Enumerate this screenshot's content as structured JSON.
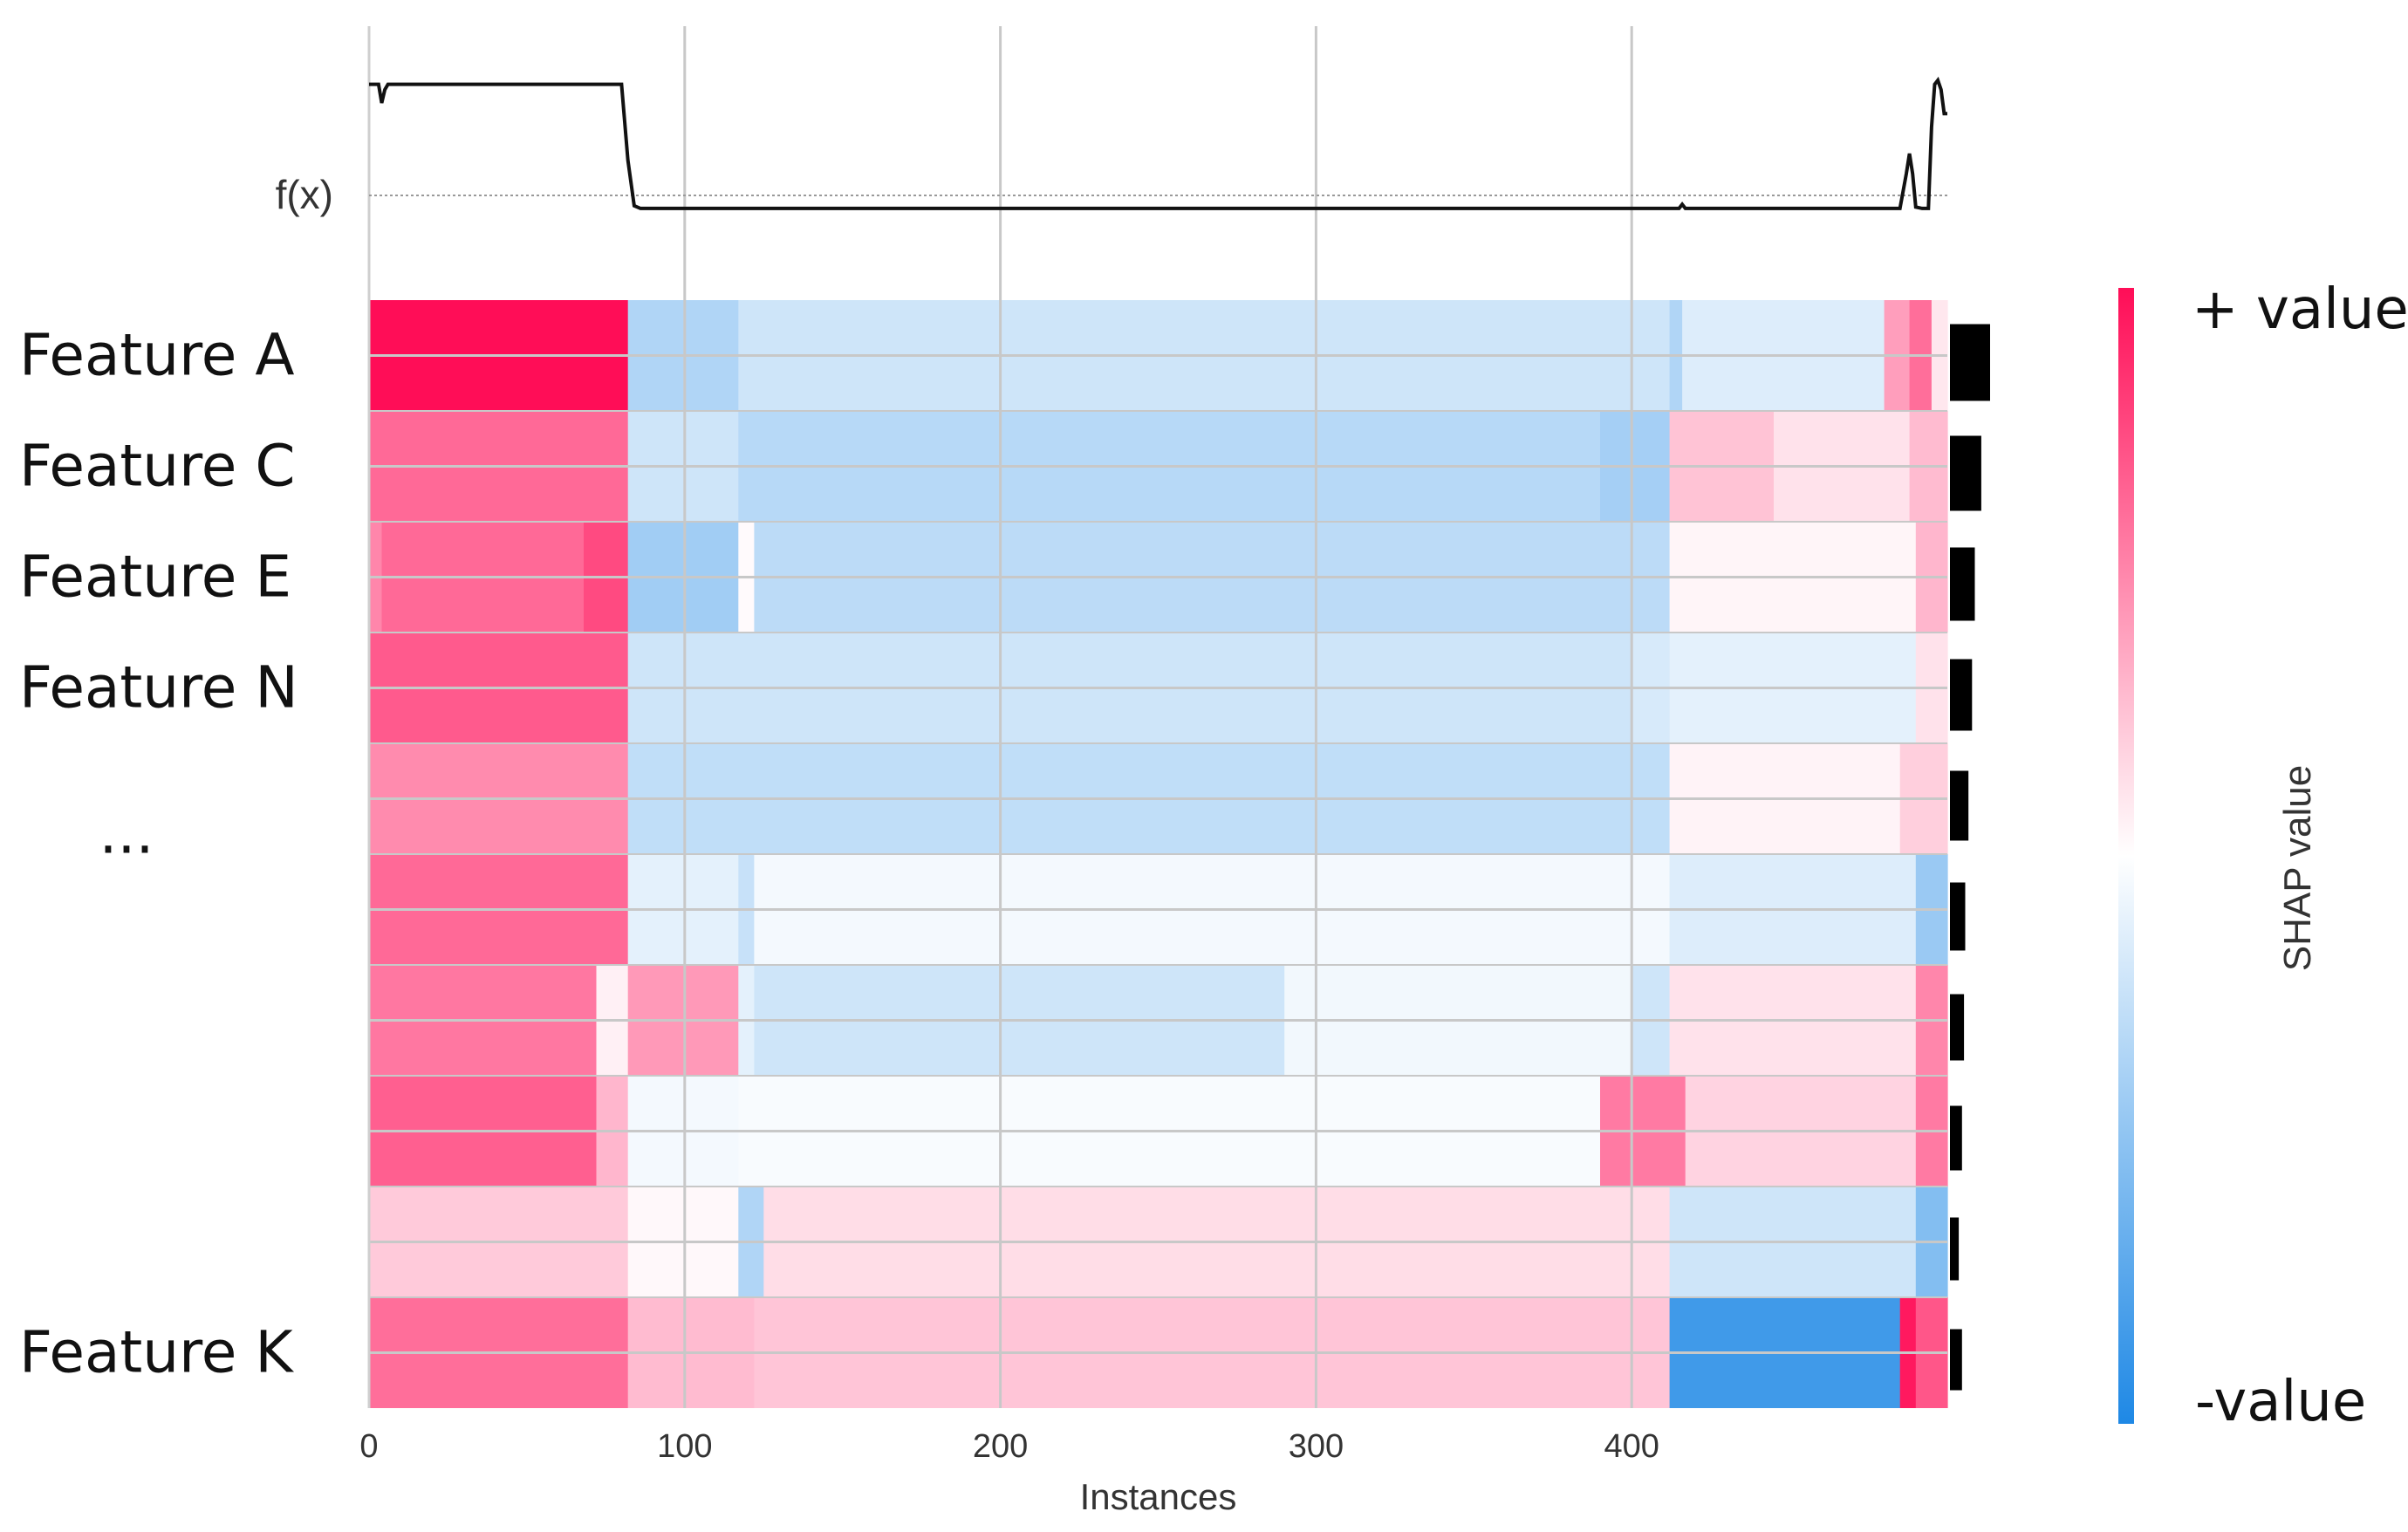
{
  "chart_data": {
    "type": "heatmap",
    "title": "",
    "xlabel": "Instances",
    "ylabel": "",
    "xlim": [
      0,
      500
    ],
    "x_ticks": [
      0,
      100,
      200,
      300,
      400
    ],
    "x_tick_labels": [
      "0",
      "100",
      "200",
      "300",
      "400"
    ],
    "fx_label": "f(x)",
    "row_labels": [
      "Feature A",
      "Feature C",
      "Feature E",
      "Feature N",
      "...",
      "",
      "",
      "",
      "",
      "Feature K"
    ],
    "heatmap_rows": [
      {
        "segments": [
          [
            0,
            82,
            1.0
          ],
          [
            82,
            117,
            -0.35
          ],
          [
            117,
            412,
            -0.22
          ],
          [
            412,
            416,
            -0.35
          ],
          [
            416,
            480,
            -0.15
          ],
          [
            480,
            488,
            0.4
          ],
          [
            488,
            495,
            0.6
          ],
          [
            495,
            500,
            0.1
          ]
        ]
      },
      {
        "segments": [
          [
            0,
            82,
            0.62
          ],
          [
            82,
            117,
            -0.22
          ],
          [
            117,
            390,
            -0.32
          ],
          [
            390,
            412,
            -0.4
          ],
          [
            412,
            445,
            0.25
          ],
          [
            445,
            488,
            0.12
          ],
          [
            488,
            500,
            0.28
          ]
        ]
      },
      {
        "segments": [
          [
            0,
            4,
            0.5
          ],
          [
            4,
            68,
            0.62
          ],
          [
            68,
            82,
            0.75
          ],
          [
            82,
            117,
            -0.42
          ],
          [
            117,
            122,
            0.02
          ],
          [
            122,
            412,
            -0.3
          ],
          [
            412,
            490,
            0.04
          ],
          [
            490,
            500,
            0.3
          ]
        ]
      },
      {
        "segments": [
          [
            0,
            82,
            0.68
          ],
          [
            82,
            400,
            -0.22
          ],
          [
            400,
            412,
            -0.18
          ],
          [
            412,
            490,
            -0.12
          ],
          [
            490,
            500,
            0.12
          ]
        ]
      },
      {
        "segments": [
          [
            0,
            82,
            0.48
          ],
          [
            82,
            412,
            -0.28
          ],
          [
            412,
            485,
            0.05
          ],
          [
            485,
            500,
            0.2
          ]
        ]
      },
      {
        "segments": [
          [
            0,
            82,
            0.62
          ],
          [
            82,
            117,
            -0.12
          ],
          [
            117,
            122,
            -0.25
          ],
          [
            122,
            412,
            -0.05
          ],
          [
            412,
            490,
            -0.15
          ],
          [
            490,
            500,
            -0.45
          ]
        ]
      },
      {
        "segments": [
          [
            0,
            72,
            0.56
          ],
          [
            72,
            82,
            0.06
          ],
          [
            82,
            117,
            0.42
          ],
          [
            117,
            122,
            -0.12
          ],
          [
            122,
            290,
            -0.22
          ],
          [
            290,
            400,
            -0.06
          ],
          [
            400,
            412,
            -0.22
          ],
          [
            412,
            490,
            0.12
          ],
          [
            490,
            500,
            0.5
          ]
        ]
      },
      {
        "segments": [
          [
            0,
            72,
            0.66
          ],
          [
            72,
            82,
            0.3
          ],
          [
            82,
            117,
            -0.05
          ],
          [
            117,
            390,
            -0.03
          ],
          [
            390,
            417,
            0.55
          ],
          [
            417,
            490,
            0.18
          ],
          [
            490,
            500,
            0.55
          ]
        ]
      },
      {
        "segments": [
          [
            0,
            82,
            0.22
          ],
          [
            82,
            117,
            0.03
          ],
          [
            117,
            125,
            -0.35
          ],
          [
            125,
            412,
            0.14
          ],
          [
            412,
            490,
            -0.22
          ],
          [
            490,
            500,
            -0.55
          ]
        ]
      },
      {
        "segments": [
          [
            0,
            82,
            0.6
          ],
          [
            82,
            122,
            0.28
          ],
          [
            122,
            412,
            0.24
          ],
          [
            412,
            485,
            -0.85
          ],
          [
            485,
            490,
            0.95
          ],
          [
            490,
            500,
            0.7
          ]
        ]
      }
    ],
    "importance_bars": [
      1.0,
      0.78,
      0.62,
      0.55,
      0.46,
      0.38,
      0.35,
      0.3,
      0.22,
      0.3
    ],
    "fx_series": {
      "x": [
        0,
        3,
        4,
        5,
        6,
        8,
        80,
        82,
        84,
        86,
        100,
        200,
        300,
        415,
        416,
        417,
        420,
        485,
        487,
        488,
        489,
        490,
        492,
        494,
        495,
        496,
        497,
        498,
        499,
        500
      ],
      "y": [
        0.97,
        0.97,
        0.83,
        0.93,
        0.97,
        0.97,
        0.97,
        0.4,
        0.06,
        0.04,
        0.04,
        0.04,
        0.04,
        0.04,
        0.07,
        0.04,
        0.04,
        0.04,
        0.3,
        0.45,
        0.3,
        0.05,
        0.04,
        0.04,
        0.65,
        0.97,
        1.0,
        0.93,
        0.75,
        0.75
      ]
    },
    "colorbar": {
      "title": "SHAP value",
      "high_label": "+ value",
      "low_label": "-value",
      "high_color": "#ff0d57",
      "low_color": "#1e88e5"
    }
  }
}
